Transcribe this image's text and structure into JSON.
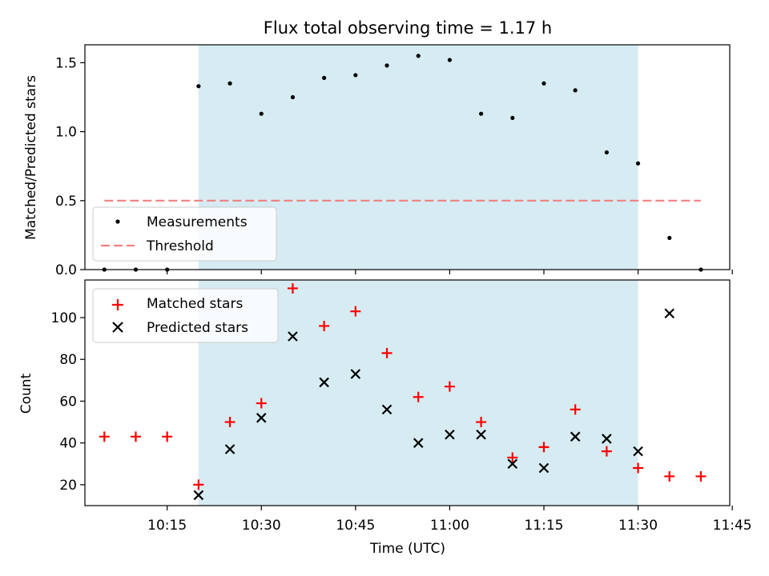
{
  "chart_data": [
    {
      "type": "scatter",
      "title": "Flux total observing time = 1.17 h",
      "ylabel": "Matched/Predicted stars",
      "xlabel": "",
      "ylim": [
        0,
        1.63
      ],
      "yticks": [
        0.0,
        0.5,
        1.0,
        1.5
      ],
      "ytick_labels": [
        "0.0",
        "0.5",
        "1.0",
        "1.5"
      ],
      "x_unit": "minutes after 10:00 UTC",
      "shaded_span": [
        "10:20",
        "11:30"
      ],
      "shade_color": "#add8e6",
      "legend_position": "lower-left",
      "series": [
        {
          "name": "Measurements",
          "marker": "dot",
          "color": "#000000",
          "x": [
            "10:05",
            "10:10",
            "10:15",
            "10:20",
            "10:25",
            "10:30",
            "10:35",
            "10:40",
            "10:45",
            "10:50",
            "10:55",
            "11:00",
            "11:05",
            "11:10",
            "11:15",
            "11:20",
            "11:25",
            "11:30",
            "11:35",
            "11:40"
          ],
          "y": [
            0.0,
            0.0,
            0.0,
            1.33,
            1.35,
            1.13,
            1.25,
            1.39,
            1.41,
            1.48,
            1.55,
            1.52,
            1.13,
            1.1,
            1.35,
            1.3,
            0.85,
            0.77,
            0.23,
            0.0
          ]
        },
        {
          "name": "Threshold",
          "marker": "dashed-line",
          "color": "#f08080",
          "x": [
            "10:05",
            "11:40"
          ],
          "y": [
            0.5,
            0.5
          ]
        }
      ]
    },
    {
      "type": "scatter",
      "ylabel": "Count",
      "xlabel": "Time (UTC)",
      "ylim": [
        10,
        118
      ],
      "yticks": [
        20,
        40,
        60,
        80,
        100
      ],
      "xticks": [
        "10:15",
        "10:30",
        "10:45",
        "11:00",
        "11:15",
        "11:30",
        "11:45"
      ],
      "shaded_span": [
        "10:20",
        "11:30"
      ],
      "shade_color": "#add8e6",
      "legend_position": "upper-left",
      "series": [
        {
          "name": "Matched stars",
          "marker": "plus",
          "color": "#ff0000",
          "x": [
            "10:05",
            "10:10",
            "10:15",
            "10:20",
            "10:25",
            "10:30",
            "10:35",
            "10:40",
            "10:45",
            "10:50",
            "10:55",
            "11:00",
            "11:05",
            "11:10",
            "11:15",
            "11:20",
            "11:25",
            "11:30",
            "11:35",
            "11:40"
          ],
          "y": [
            43,
            43,
            43,
            20,
            50,
            59,
            114,
            96,
            103,
            83,
            62,
            67,
            50,
            33,
            38,
            56,
            36,
            28,
            24,
            24
          ]
        },
        {
          "name": "Predicted stars",
          "marker": "x",
          "color": "#000000",
          "x": [
            "10:20",
            "10:25",
            "10:30",
            "10:35",
            "10:40",
            "10:45",
            "10:50",
            "10:55",
            "11:00",
            "11:05",
            "11:10",
            "11:15",
            "11:20",
            "11:25",
            "11:30",
            "11:35"
          ],
          "y": [
            15,
            37,
            52,
            91,
            69,
            73,
            56,
            40,
            44,
            44,
            30,
            28,
            43,
            42,
            36,
            102
          ]
        }
      ]
    }
  ]
}
